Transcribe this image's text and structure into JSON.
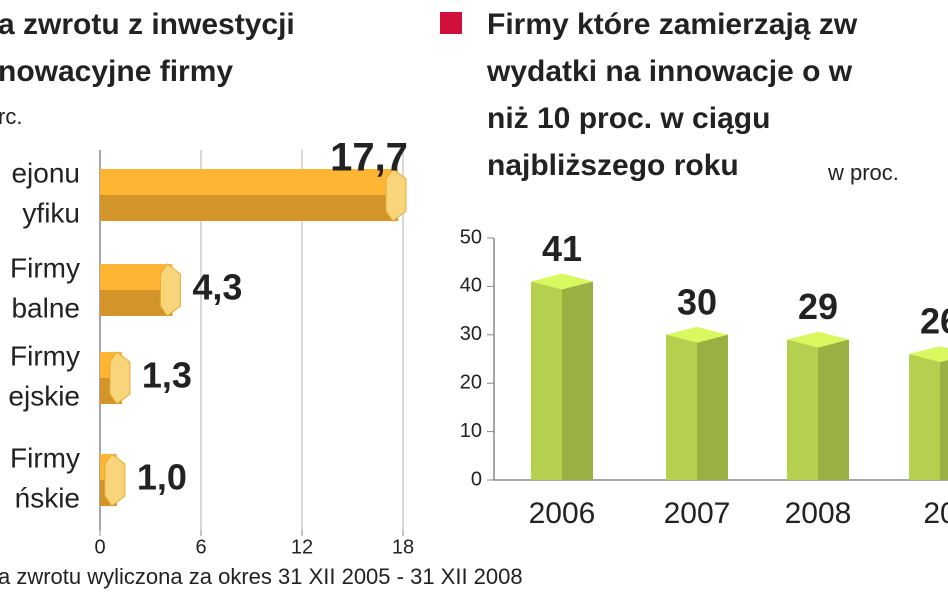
{
  "left_chart": {
    "chart_data": {
      "type": "hbar",
      "title_lines": [
        "a zwrotu z inwestycji",
        "nowacyjne firmy"
      ],
      "subtitle": "rc.",
      "categories": [
        [
          "ejonu",
          "yfiku"
        ],
        [
          "Firmy",
          "balne"
        ],
        [
          "Firmy",
          "ejskie"
        ],
        [
          "Firmy",
          "ńskie"
        ]
      ],
      "values": [
        17.7,
        4.3,
        1.3,
        1.0
      ],
      "value_labels": [
        "17,7",
        "4,3",
        "1,3",
        "1,0"
      ],
      "color": "#f0a830",
      "xlim": [
        0,
        18
      ],
      "xticks": [
        0,
        6,
        12,
        18
      ],
      "grid": true,
      "footnote": "a zwrotu wyliczona za okres 31 XII 2005 - 31 XII 2008"
    }
  },
  "right_chart": {
    "chart_data": {
      "type": "bar",
      "legend_color": "#d0103a",
      "title_lines": [
        "Firmy które zamierzają zw",
        "wydatki na innowacje o w",
        "niż 10 proc. w ciągu",
        "najbliższego roku"
      ],
      "unit": "w proc.",
      "categories": [
        "2006",
        "2007",
        "2008",
        "20"
      ],
      "values": [
        41,
        30,
        29,
        26
      ],
      "color": "#b5cf4f",
      "ylim": [
        0,
        50
      ],
      "yticks": [
        0,
        10,
        20,
        30,
        40,
        50
      ]
    }
  }
}
